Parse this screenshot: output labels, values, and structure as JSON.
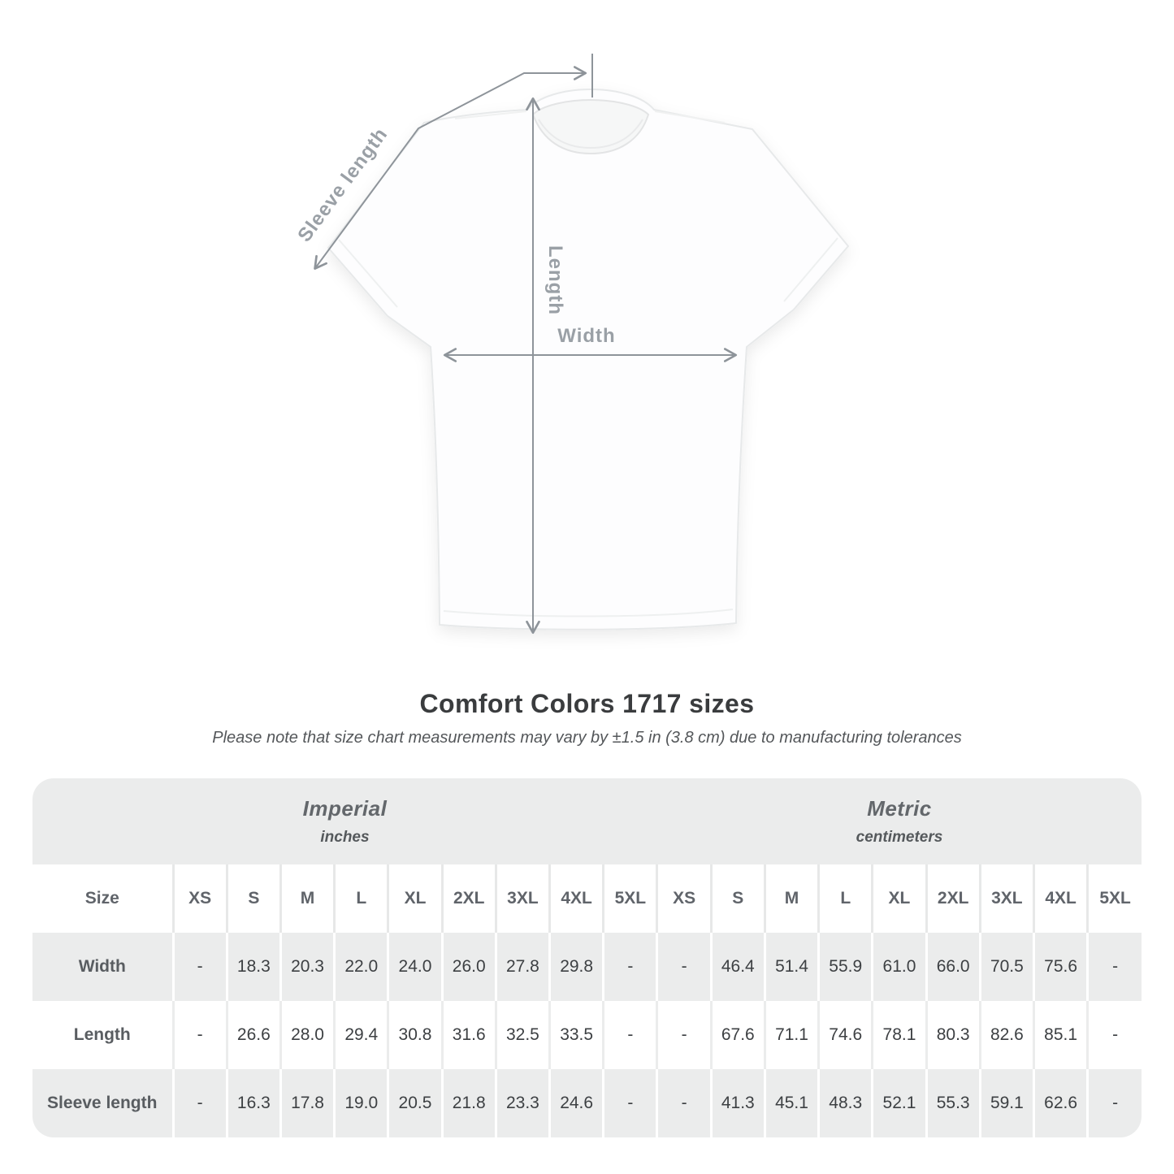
{
  "title": "Comfort Colors 1717 sizes",
  "subtitle": "Please note that size chart measurements may vary by ±1.5 in (3.8 cm) due to manufacturing tolerances",
  "diagram": {
    "labels": {
      "sleeve": "Sleeve length",
      "length": "Length",
      "width": "Width"
    }
  },
  "colors": {
    "measure_line": "#8e949a",
    "measure_label": "#9aa0a6",
    "band_bg": "#ebecec"
  },
  "table": {
    "unit_groups": [
      {
        "label": "Imperial",
        "sublabel": "inches"
      },
      {
        "label": "Metric",
        "sublabel": "centimeters"
      }
    ],
    "size_header": "Size",
    "sizes": [
      "XS",
      "S",
      "M",
      "L",
      "XL",
      "2XL",
      "3XL",
      "4XL",
      "5XL"
    ],
    "rows": [
      {
        "label": "Width",
        "imperial": [
          "-",
          "18.3",
          "20.3",
          "22.0",
          "24.0",
          "26.0",
          "27.8",
          "29.8",
          "-"
        ],
        "metric": [
          "-",
          "46.4",
          "51.4",
          "55.9",
          "61.0",
          "66.0",
          "70.5",
          "75.6",
          "-"
        ]
      },
      {
        "label": "Length",
        "imperial": [
          "-",
          "26.6",
          "28.0",
          "29.4",
          "30.8",
          "31.6",
          "32.5",
          "33.5",
          "-"
        ],
        "metric": [
          "-",
          "67.6",
          "71.1",
          "74.6",
          "78.1",
          "80.3",
          "82.6",
          "85.1",
          "-"
        ]
      },
      {
        "label": "Sleeve length",
        "imperial": [
          "-",
          "16.3",
          "17.8",
          "19.0",
          "20.5",
          "21.8",
          "23.3",
          "24.6",
          "-"
        ],
        "metric": [
          "-",
          "41.3",
          "45.1",
          "48.3",
          "52.1",
          "55.3",
          "59.1",
          "62.6",
          "-"
        ]
      }
    ]
  }
}
